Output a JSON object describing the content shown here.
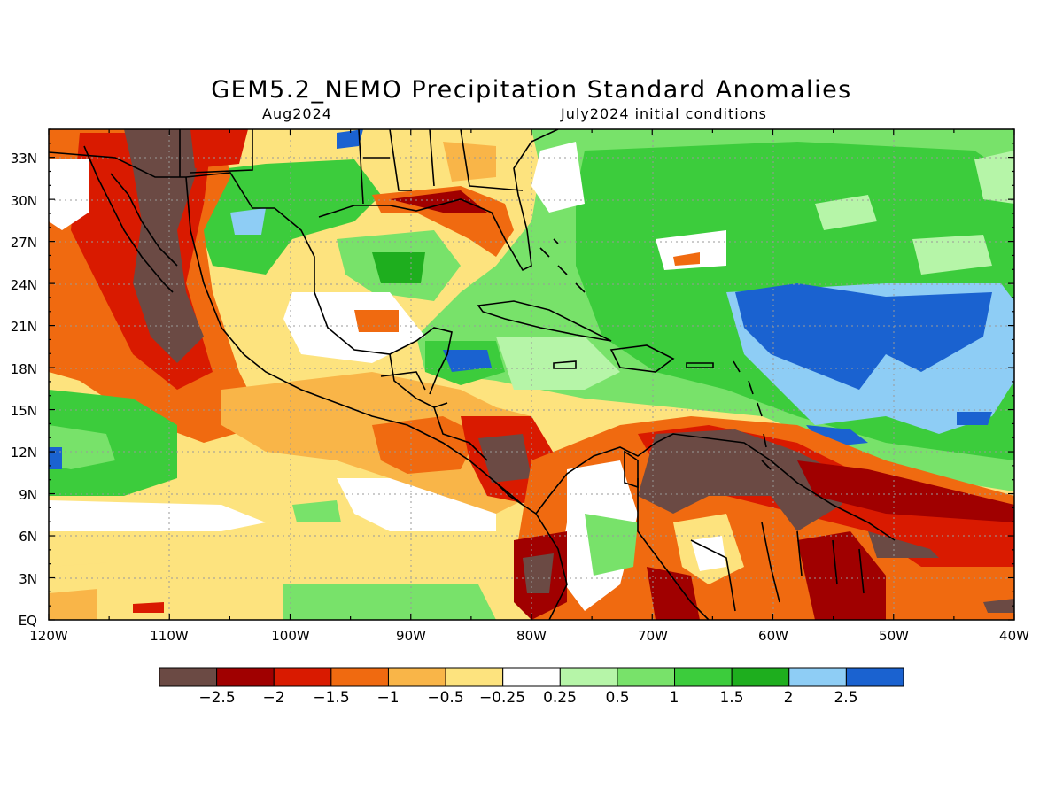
{
  "title": "GEM5.2_NEMO Precipitation Standard Anomalies",
  "subtitle_left": "Aug2024",
  "subtitle_right": "July2024 initial conditions",
  "lon_labels": [
    "120W",
    "110W",
    "100W",
    "90W",
    "80W",
    "70W",
    "60W",
    "50W",
    "40W"
  ],
  "lat_labels": [
    "EQ",
    "3N",
    "6N",
    "9N",
    "12N",
    "15N",
    "18N",
    "21N",
    "24N",
    "27N",
    "30N",
    "33N"
  ],
  "colorbar": {
    "colors": [
      "#6b4a44",
      "#a00000",
      "#d91a00",
      "#f06a10",
      "#f9b548",
      "#fde37e",
      "#ffffff",
      "#b6f5a8",
      "#78e26a",
      "#3ccc3c",
      "#1eae1e",
      "#8ecdf5",
      "#1a62d0"
    ],
    "labels": [
      "−2.5",
      "−2",
      "−1.5",
      "−1",
      "−0.5",
      "−0.25",
      "0.25",
      "0.5",
      "1",
      "1.5",
      "2",
      "2.5"
    ]
  },
  "map_extent": {
    "lon_min": -120,
    "lon_max": -40,
    "lat_min": 0,
    "lat_max": 35
  }
}
